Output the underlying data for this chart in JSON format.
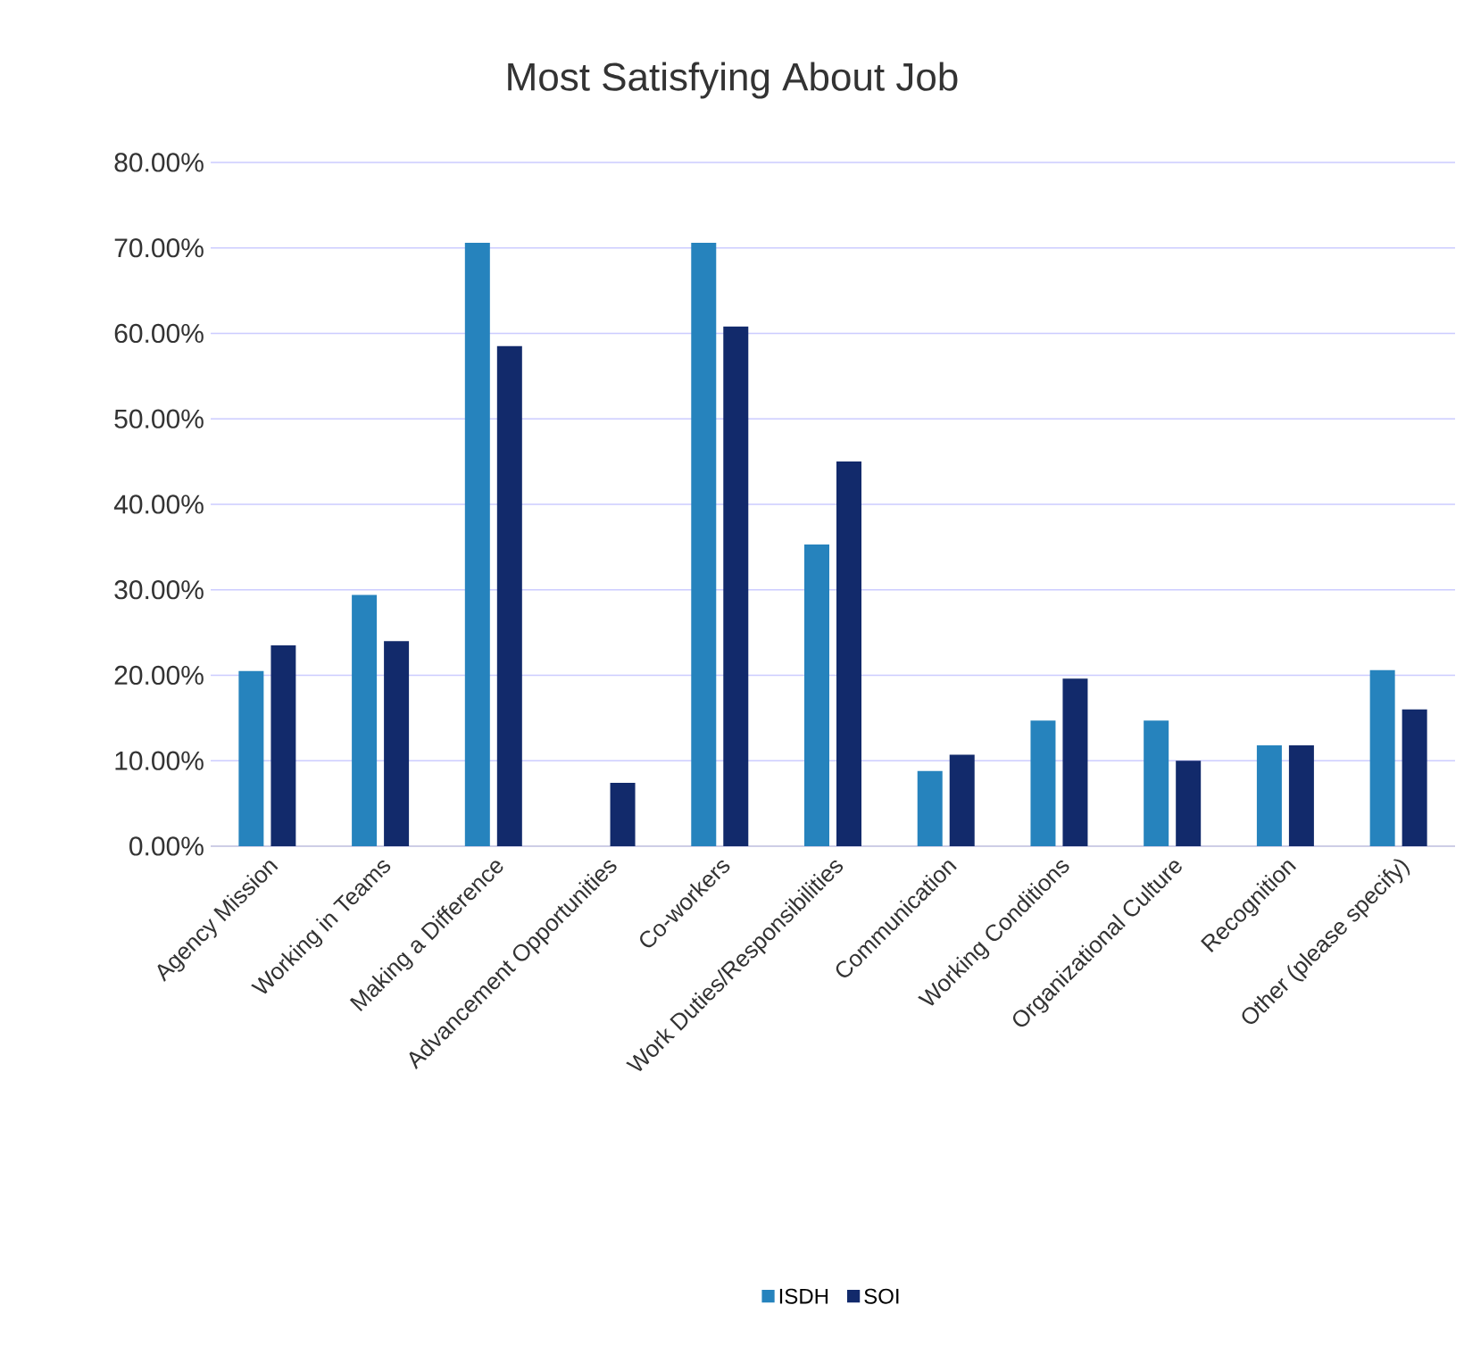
{
  "chart_data": {
    "type": "bar",
    "title": "Most Satisfying About Job",
    "categories": [
      "Agency Mission",
      "Working in Teams",
      "Making a Difference",
      "Advancement Opportunities",
      "Co-workers",
      "Work Duties/Responsibilities",
      "Communication",
      "Working Conditions",
      "Organizational Culture",
      "Recognition",
      "Other (please specify)"
    ],
    "series": [
      {
        "name": "ISDH",
        "color": "#2683bd",
        "values": [
          20.5,
          29.4,
          70.6,
          0,
          70.6,
          35.3,
          8.8,
          14.7,
          14.7,
          11.8,
          20.6
        ]
      },
      {
        "name": "SOI",
        "color": "#122a6b",
        "values": [
          23.5,
          24,
          58.5,
          7.4,
          60.8,
          45,
          10.7,
          19.6,
          10,
          11.8,
          16
        ]
      }
    ],
    "ylim": [
      0,
      80
    ],
    "yticks": [
      {
        "value": 0,
        "label": "0.00%"
      },
      {
        "value": 10,
        "label": "10.00%"
      },
      {
        "value": 20,
        "label": "20.00%"
      },
      {
        "value": 30,
        "label": "30.00%"
      },
      {
        "value": 40,
        "label": "40.00%"
      },
      {
        "value": 50,
        "label": "50.00%"
      },
      {
        "value": 60,
        "label": "60.00%"
      },
      {
        "value": 70,
        "label": "70.00%"
      },
      {
        "value": 80,
        "label": "80.00%"
      }
    ],
    "grid": "y",
    "legend": "bottom"
  }
}
